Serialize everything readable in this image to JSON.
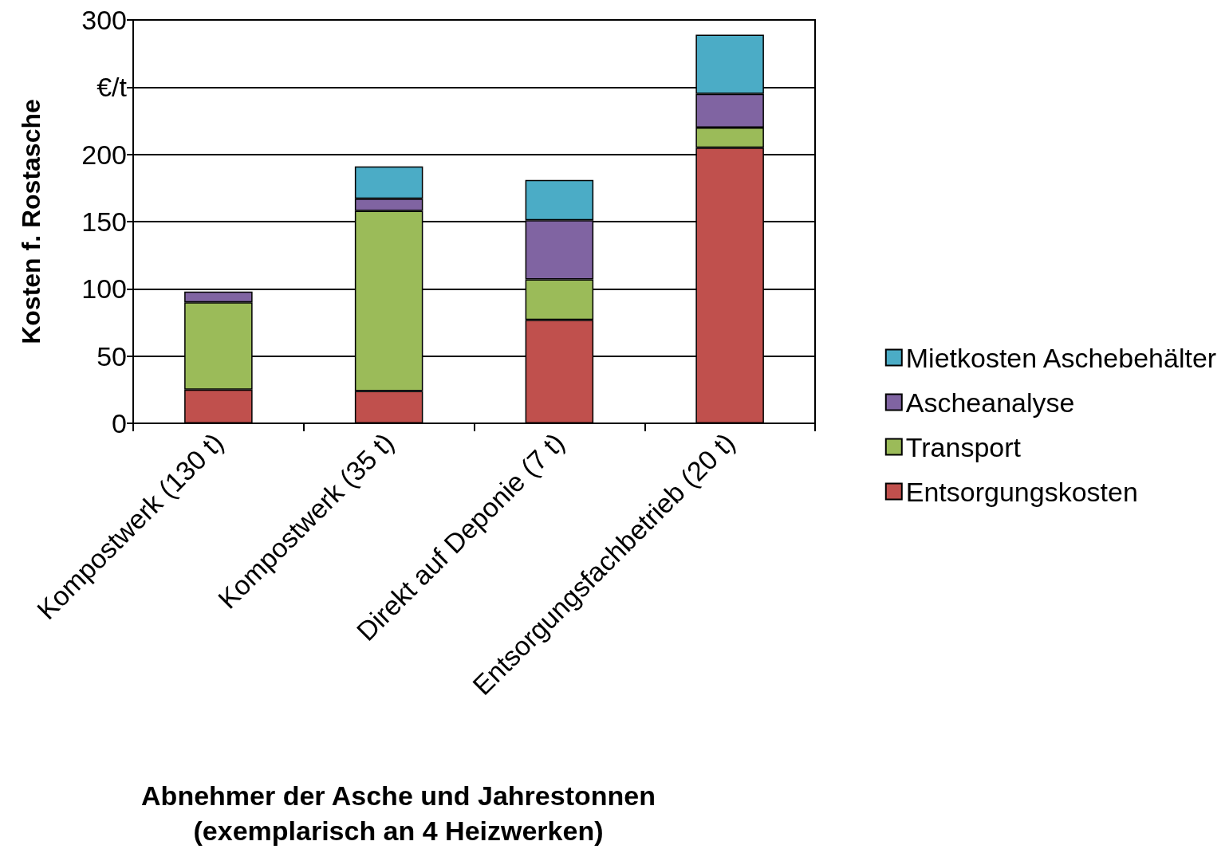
{
  "chart_data": {
    "type": "bar",
    "stacked": true,
    "xlabel": "Abnehmer der Asche und Jahrestonnen\n(exemplarisch an 4 Heizwerken)",
    "ylabel": "Kosten f. Rostasche",
    "categories": [
      "Kompostwerk (130 t)",
      "Kompostwerk (35 t)",
      "Direkt auf Deponie (7 t)",
      "Entsorgungsfachbetrieb (20 t)"
    ],
    "series": [
      {
        "name": "Entsorgungskosten",
        "color": "#c0504d",
        "values": [
          25,
          24,
          77,
          205
        ]
      },
      {
        "name": "Transport",
        "color": "#9bbb59",
        "values": [
          65,
          134,
          30,
          15
        ]
      },
      {
        "name": "Ascheanalyse",
        "color": "#8064a2",
        "values": [
          8,
          9,
          44,
          25
        ]
      },
      {
        "name": "Mietkosten Aschebehälter",
        "color": "#4bacc6",
        "values": [
          null,
          24,
          30,
          44
        ]
      }
    ],
    "ylim": [
      0,
      300
    ],
    "yticks": [
      0,
      50,
      100,
      150,
      200,
      {
        "value": 250,
        "label": "€/t"
      },
      300
    ],
    "grid": "y",
    "legend": "right"
  }
}
